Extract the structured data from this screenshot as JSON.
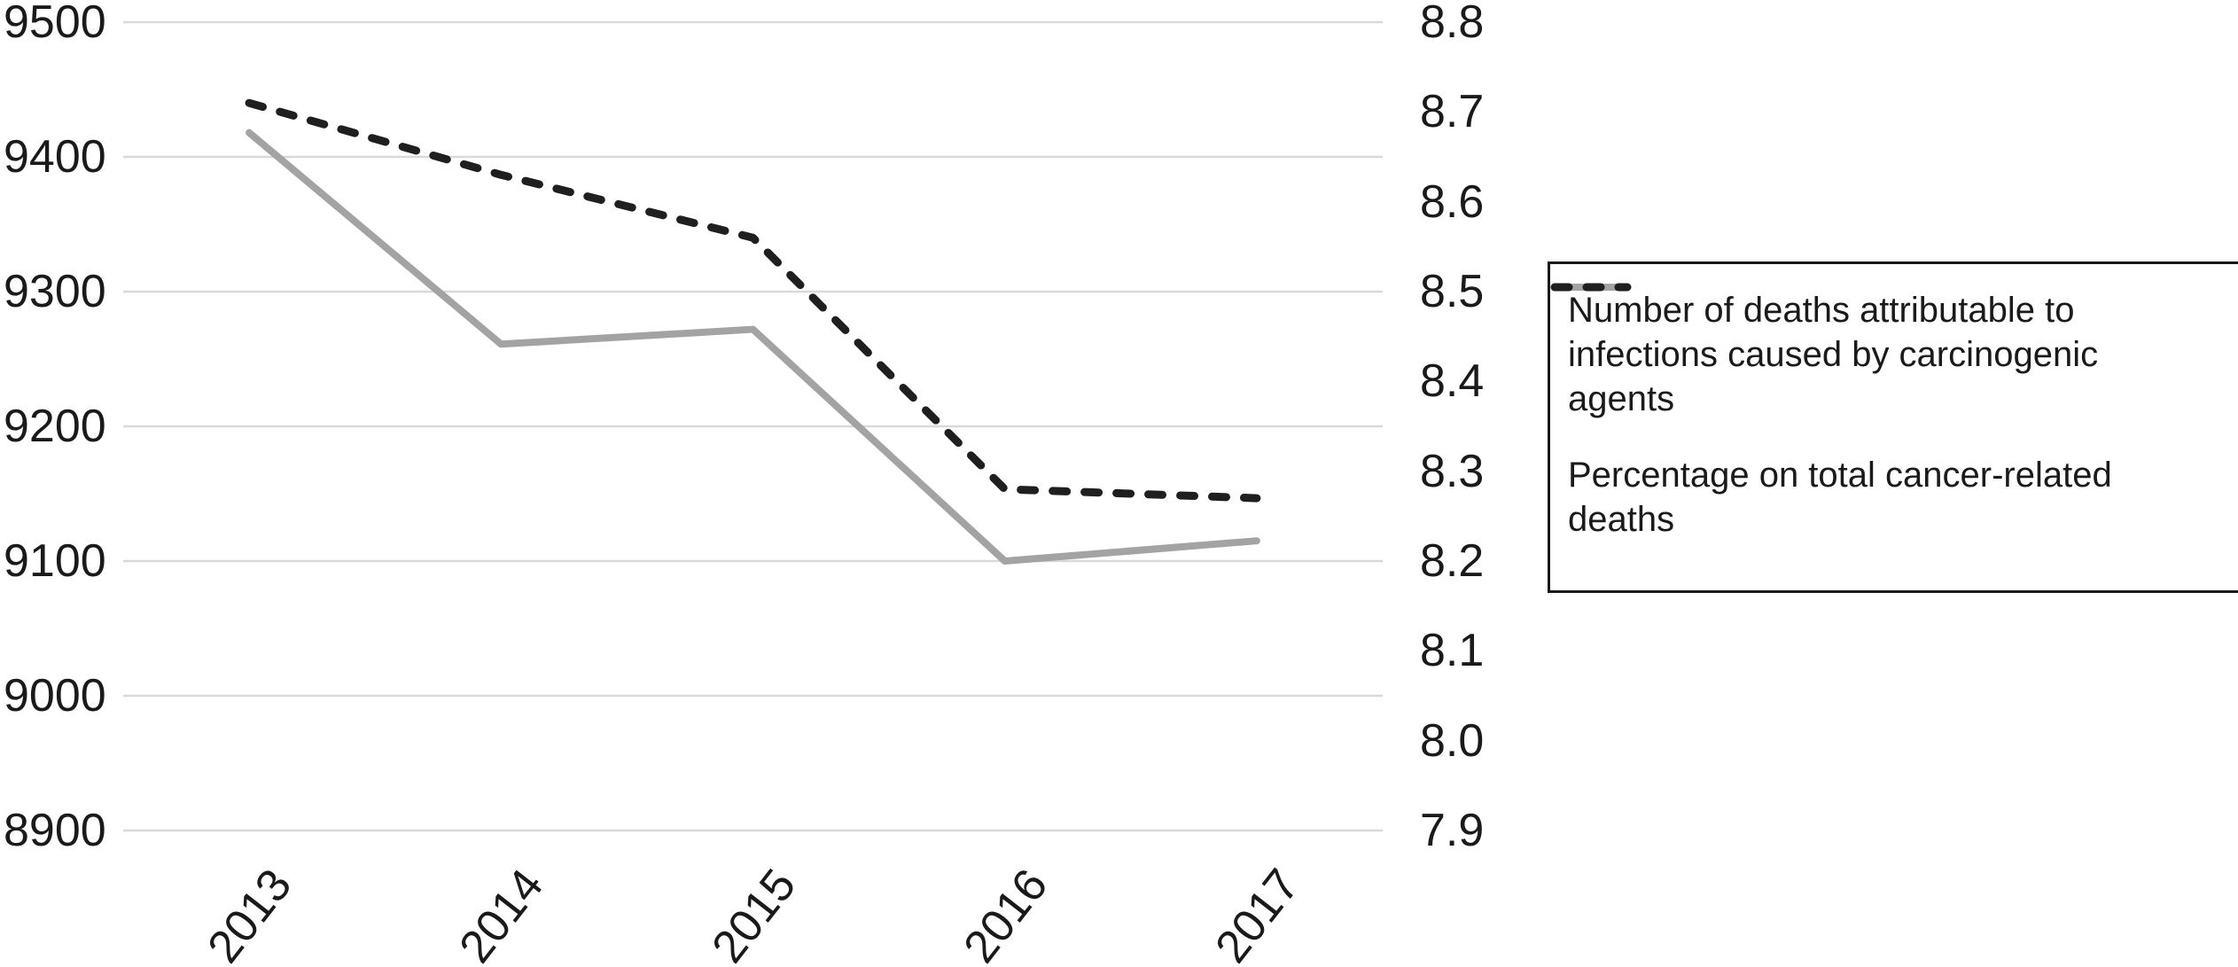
{
  "chart_data": {
    "type": "line",
    "title": "",
    "categories": [
      "2013",
      "2014",
      "2015",
      "2016",
      "2017"
    ],
    "series": [
      {
        "name": "Number of deaths attributable to infections caused by carcinogenic agents",
        "axis": "left",
        "line_style": "solid",
        "color": "#a3a3a3",
        "values": [
          9418,
          9261,
          9272,
          9100,
          9115
        ]
      },
      {
        "name": "Percentage on total cancer-related deaths",
        "axis": "right",
        "line_style": "dashed",
        "color": "#1f1f1f",
        "values": [
          8.71,
          8.63,
          8.56,
          8.28,
          8.27
        ]
      }
    ],
    "left_axis": {
      "min": 8900,
      "max": 9500,
      "tick_labels": [
        "9500",
        "9400",
        "9300",
        "9200",
        "9100",
        "9000",
        "8900"
      ]
    },
    "right_axis": {
      "min": 7.9,
      "max": 8.8,
      "tick_labels": [
        "8.8",
        "8.7",
        "8.6",
        "8.5",
        "8.4",
        "8.3",
        "8.2",
        "8.1",
        "8.0",
        "7.9"
      ]
    },
    "grid": "horizontal",
    "gridline_color": "#d9d9d9",
    "legend_position": "right"
  },
  "legend": {
    "items": [
      {
        "label": "Number of deaths attributable to\ninfections caused by carcinogenic\nagents",
        "swatch": "solid-gray"
      },
      {
        "label": "Percentage on total cancer-related\ndeaths",
        "swatch": "dashed-black"
      }
    ]
  },
  "colors": {
    "background": "#ffffff",
    "text": "#1a1a1a",
    "gridline": "#d9d9d9",
    "series_deaths": "#a3a3a3",
    "series_percentage": "#1f1f1f",
    "legend_border": "#1a1a1a"
  }
}
